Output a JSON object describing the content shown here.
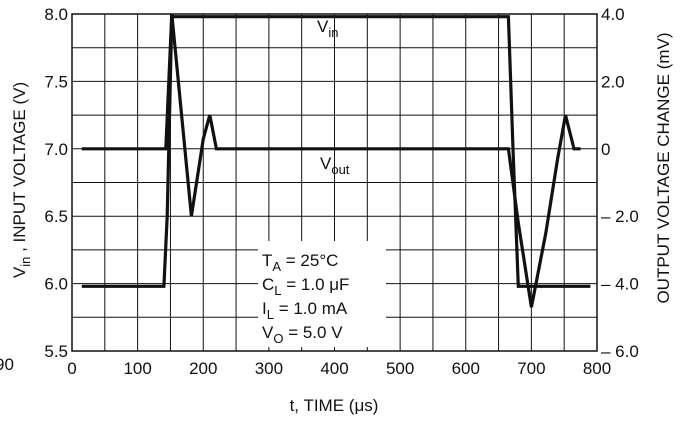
{
  "chart_data": {
    "type": "line",
    "title": "",
    "xlabel": {
      "main": "t, TIME (",
      "mu": "μ",
      "tail": "s)"
    },
    "ylabel_left": {
      "base": "V",
      "sub": "in",
      "rest": " , INPUT VOLTAGE (V)"
    },
    "ylabel_right": "OUTPUT VOLTAGE CHANGE (mV)",
    "xlim": [
      0,
      800
    ],
    "ylim_left": [
      5.5,
      8.0
    ],
    "ylim_right": [
      -6.0,
      4.0
    ],
    "grid": true,
    "x_ticks": [
      "0",
      "100",
      "200",
      "300",
      "400",
      "500",
      "600",
      "700",
      "800"
    ],
    "x_tick_values": [
      0,
      100,
      200,
      300,
      400,
      500,
      600,
      700,
      800
    ],
    "y_ticks_left": [
      "5.5",
      "6.0",
      "6.5",
      "7.0",
      "7.5",
      "8.0"
    ],
    "y_tick_values_left": [
      5.5,
      6.0,
      6.5,
      7.0,
      7.5,
      8.0
    ],
    "y_ticks_right": [
      "– 6.0",
      "– 4.0",
      "– 2.0",
      "0",
      "2.0",
      "4.0"
    ],
    "y_tick_values_right": [
      -6.0,
      -4.0,
      -2.0,
      0,
      2.0,
      4.0
    ],
    "stray_left_label": "90",
    "series": [
      {
        "name": "V_in",
        "label": {
          "base": "V",
          "sub": "in"
        },
        "axis": "left",
        "x": [
          15,
          140,
          145,
          152,
          665,
          672,
          680,
          790
        ],
        "y": [
          5.98,
          5.98,
          6.5,
          7.98,
          7.98,
          7.0,
          5.98,
          5.98
        ]
      },
      {
        "name": "V_out",
        "label": {
          "base": "V",
          "sub": "out"
        },
        "axis": "right",
        "x": [
          15,
          138,
          143,
          152,
          182,
          200,
          210,
          220,
          660,
          665,
          680,
          700,
          722,
          740,
          752,
          765,
          775
        ],
        "y": [
          0,
          0,
          0,
          4.0,
          -2.0,
          0.3,
          1.0,
          0,
          0,
          0,
          -2.2,
          -4.7,
          -2.5,
          -0.3,
          1.0,
          0,
          0
        ]
      }
    ],
    "annotation_lines": [
      {
        "base": "T",
        "sub": "A",
        "rest": " = 25°C"
      },
      {
        "base": "C",
        "sub": "L",
        "rest": " = 1.0 μF"
      },
      {
        "base": "I",
        "sub": "L",
        "rest": " = 1.0 mA"
      },
      {
        "base": "V",
        "sub": "O",
        "rest": " = 5.0 V"
      }
    ]
  }
}
